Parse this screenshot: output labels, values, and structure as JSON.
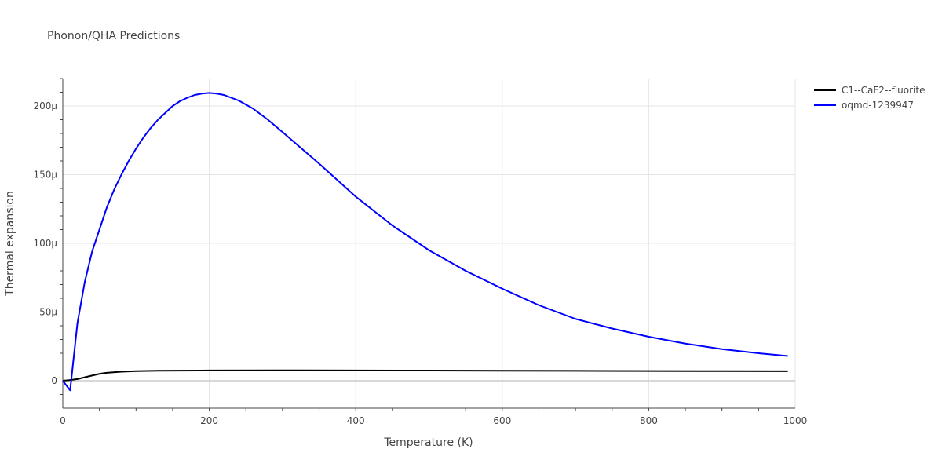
{
  "chart_data": {
    "type": "line",
    "title": "Phonon/QHA Predictions",
    "xlabel": "Temperature (K)",
    "ylabel": "Thermal expansion",
    "xlim": [
      0,
      1000
    ],
    "ylim": [
      -20,
      220
    ],
    "y_unit_suffix": "μ",
    "x_ticks": [
      0,
      200,
      400,
      600,
      800,
      1000
    ],
    "y_ticks": [
      0,
      50,
      100,
      150,
      200
    ],
    "grid": true,
    "legend_position": "top-right",
    "series": [
      {
        "name": "C1--CaF2--fluorite",
        "color": "#000000",
        "x": [
          0,
          10,
          20,
          30,
          40,
          50,
          60,
          80,
          100,
          130,
          200,
          300,
          400,
          500,
          600,
          700,
          800,
          900,
          990
        ],
        "y": [
          0,
          0.5,
          1.2,
          2.5,
          3.8,
          5.0,
          5.8,
          6.6,
          7.0,
          7.3,
          7.5,
          7.6,
          7.5,
          7.4,
          7.3,
          7.2,
          7.1,
          7.0,
          6.9
        ]
      },
      {
        "name": "oqmd-1239947",
        "color": "#0000ff",
        "x": [
          0,
          10,
          20,
          30,
          40,
          50,
          60,
          70,
          80,
          90,
          100,
          110,
          120,
          130,
          140,
          150,
          160,
          170,
          180,
          190,
          200,
          210,
          220,
          240,
          260,
          280,
          300,
          350,
          400,
          450,
          500,
          550,
          600,
          650,
          700,
          750,
          800,
          850,
          900,
          950,
          990
        ],
        "y": [
          0,
          -7,
          42,
          72,
          94,
          110,
          126,
          139,
          150,
          160,
          169,
          177,
          184,
          190,
          195,
          200,
          203.5,
          206,
          208,
          209,
          209.5,
          209,
          208,
          204,
          198,
          190,
          181,
          158,
          134,
          113,
          95,
          80,
          67,
          55,
          45,
          38,
          32,
          27,
          23,
          20,
          18
        ]
      }
    ]
  }
}
